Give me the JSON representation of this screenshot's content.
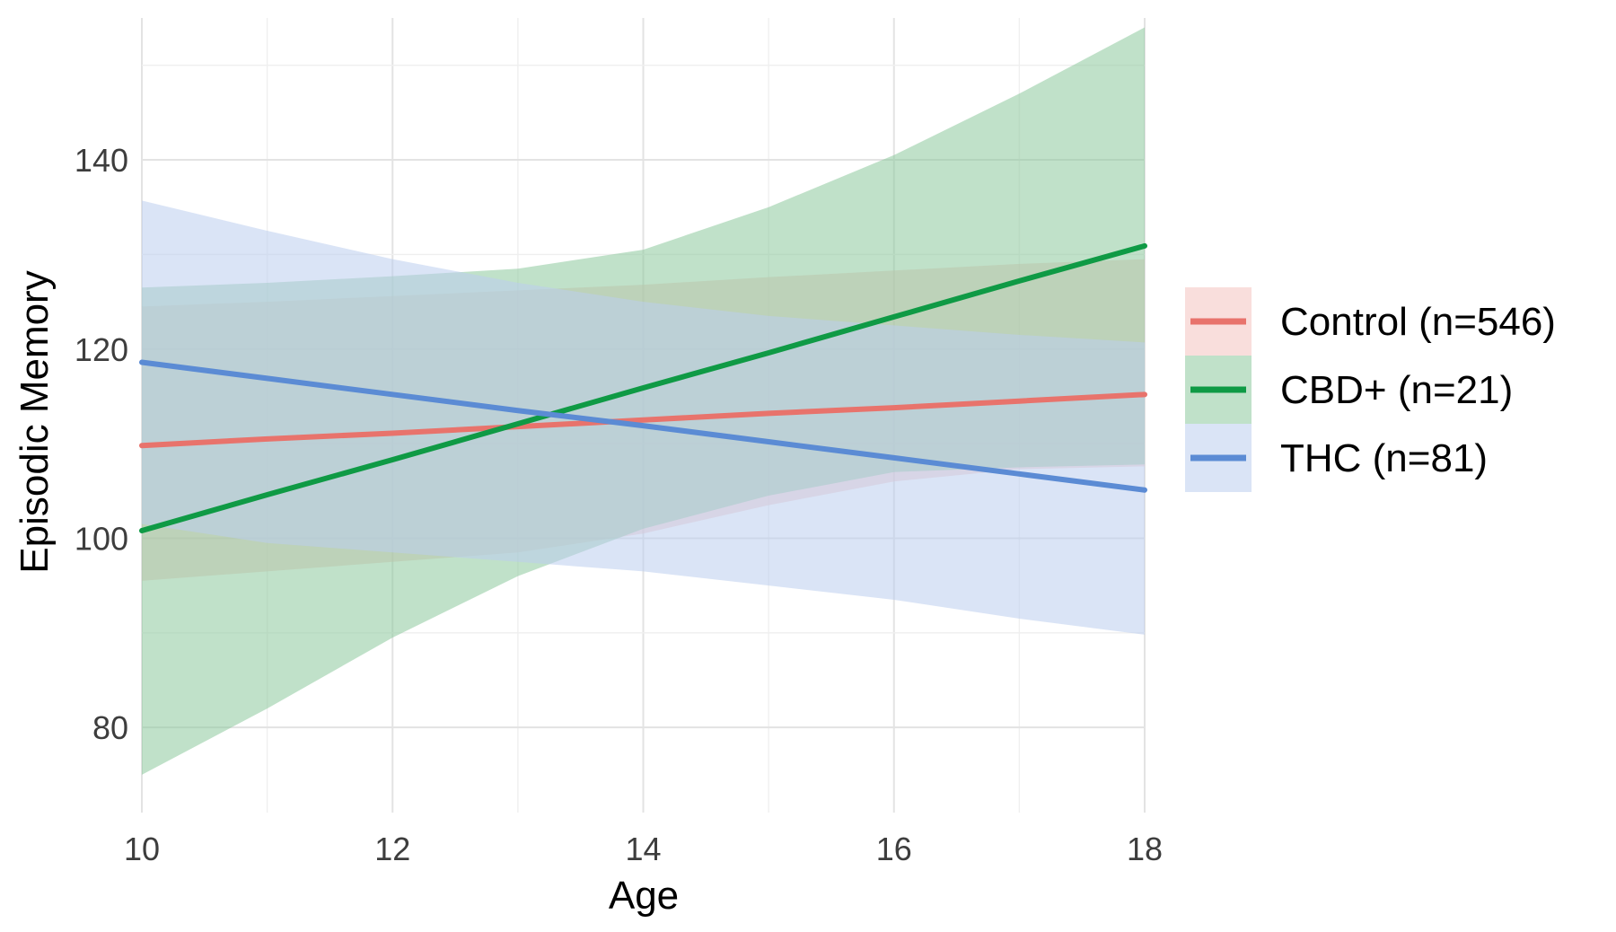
{
  "chart_data": {
    "type": "line",
    "xlabel": "Age",
    "ylabel": "Episodic Memory",
    "xlim": [
      10,
      18
    ],
    "ylim": [
      71,
      155
    ],
    "x_ticks": [
      10,
      12,
      14,
      16,
      18
    ],
    "y_ticks": [
      80,
      100,
      120,
      140
    ],
    "grid": true,
    "legend_position": "right",
    "x": [
      10,
      11,
      12,
      13,
      14,
      15,
      16,
      17,
      18
    ],
    "series": [
      {
        "name": "Control (n=546)",
        "color": "#e8736c",
        "fill_color": "#f4c2c0",
        "values": [
          109.8,
          110.5,
          111.1,
          111.8,
          112.5,
          113.2,
          113.8,
          114.5,
          115.2
        ],
        "lower": [
          95.5,
          96.5,
          97.5,
          98.5,
          100.5,
          103.5,
          106.0,
          107.3,
          107.6
        ],
        "upper": [
          124.5,
          125.0,
          125.6,
          126.2,
          126.8,
          127.6,
          128.3,
          129.0,
          129.5
        ]
      },
      {
        "name": "CBD+ (n=21)",
        "color": "#0f9a45",
        "fill_color": "#8cc99c",
        "values": [
          100.8,
          104.6,
          108.3,
          112.1,
          115.9,
          119.6,
          123.4,
          127.2,
          130.9
        ],
        "lower": [
          75.0,
          82.0,
          89.5,
          96.0,
          101.0,
          104.5,
          107.0,
          107.5,
          107.8
        ],
        "upper": [
          126.5,
          127.0,
          127.7,
          128.5,
          130.5,
          135.0,
          140.5,
          147.0,
          154.0
        ]
      },
      {
        "name": "THC (n=81)",
        "color": "#5b8bd4",
        "fill_color": "#bccdee",
        "values": [
          118.6,
          116.9,
          115.2,
          113.5,
          111.9,
          110.2,
          108.5,
          106.8,
          105.1
        ],
        "lower": [
          101.5,
          99.5,
          98.5,
          97.5,
          96.5,
          95.0,
          93.5,
          91.5,
          89.8
        ],
        "upper": [
          135.7,
          132.5,
          129.5,
          127.0,
          125.0,
          123.5,
          122.5,
          121.5,
          120.7
        ]
      }
    ]
  }
}
